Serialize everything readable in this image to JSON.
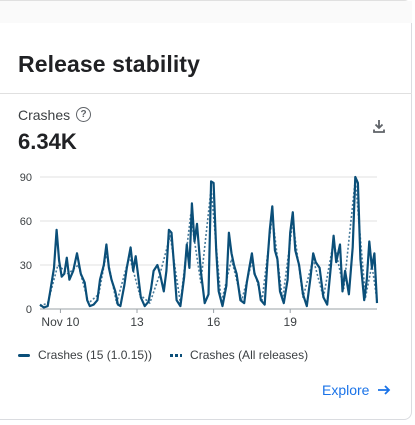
{
  "card": {
    "title": "Release stability",
    "metric_label": "Crashes",
    "metric_value": "6.34K",
    "help_icon": "help-circle-icon",
    "download_icon": "download-icon",
    "explore_label": "Explore",
    "explore_icon": "arrow-right-icon"
  },
  "legend": [
    {
      "label": "Crashes (15 (1.0.15))",
      "style": "solid"
    },
    {
      "label": "Crashes (All releases)",
      "style": "dotted"
    }
  ],
  "colors": {
    "series": "#0b4f79",
    "accent": "#1a73e8",
    "grid": "#e0e0e0"
  },
  "chart_data": {
    "type": "line",
    "y_ticks": [
      "90",
      "60",
      "30",
      "0"
    ],
    "ylim": [
      0,
      90
    ],
    "x_ticks": [
      {
        "label": "Nov 10",
        "day": 10
      },
      {
        "label": "13",
        "day": 13
      },
      {
        "label": "16",
        "day": 16
      },
      {
        "label": "19",
        "day": 19
      }
    ],
    "xlim": [
      9.2,
      22.4
    ],
    "series": [
      {
        "name": "Crashes (15 (1.0.15))",
        "style": "solid",
        "points": [
          [
            9.2,
            3
          ],
          [
            9.35,
            1
          ],
          [
            9.5,
            2
          ],
          [
            9.6,
            12
          ],
          [
            9.75,
            28
          ],
          [
            9.85,
            54
          ],
          [
            9.95,
            33
          ],
          [
            10.05,
            22
          ],
          [
            10.15,
            24
          ],
          [
            10.25,
            35
          ],
          [
            10.35,
            20
          ],
          [
            10.5,
            26
          ],
          [
            10.65,
            38
          ],
          [
            10.8,
            24
          ],
          [
            10.95,
            18
          ],
          [
            11.05,
            6
          ],
          [
            11.15,
            2
          ],
          [
            11.3,
            3
          ],
          [
            11.45,
            6
          ],
          [
            11.55,
            20
          ],
          [
            11.7,
            30
          ],
          [
            11.8,
            44
          ],
          [
            11.9,
            28
          ],
          [
            12.0,
            20
          ],
          [
            12.15,
            12
          ],
          [
            12.25,
            3
          ],
          [
            12.35,
            2
          ],
          [
            12.5,
            16
          ],
          [
            12.6,
            28
          ],
          [
            12.75,
            42
          ],
          [
            12.85,
            26
          ],
          [
            12.95,
            36
          ],
          [
            13.05,
            22
          ],
          [
            13.15,
            8
          ],
          [
            13.3,
            2
          ],
          [
            13.45,
            5
          ],
          [
            13.55,
            14
          ],
          [
            13.65,
            26
          ],
          [
            13.8,
            30
          ],
          [
            13.9,
            24
          ],
          [
            14.05,
            12
          ],
          [
            14.15,
            26
          ],
          [
            14.25,
            54
          ],
          [
            14.35,
            52
          ],
          [
            14.45,
            30
          ],
          [
            14.55,
            6
          ],
          [
            14.7,
            2
          ],
          [
            14.85,
            22
          ],
          [
            14.95,
            44
          ],
          [
            15.05,
            28
          ],
          [
            15.15,
            72
          ],
          [
            15.25,
            46
          ],
          [
            15.35,
            58
          ],
          [
            15.5,
            26
          ],
          [
            15.65,
            4
          ],
          [
            15.8,
            10
          ],
          [
            15.9,
            87
          ],
          [
            16.0,
            86
          ],
          [
            16.1,
            40
          ],
          [
            16.2,
            12
          ],
          [
            16.35,
            2
          ],
          [
            16.5,
            16
          ],
          [
            16.6,
            52
          ],
          [
            16.7,
            38
          ],
          [
            16.8,
            30
          ],
          [
            16.9,
            24
          ],
          [
            17.05,
            6
          ],
          [
            17.2,
            4
          ],
          [
            17.3,
            18
          ],
          [
            17.4,
            28
          ],
          [
            17.5,
            38
          ],
          [
            17.6,
            24
          ],
          [
            17.75,
            18
          ],
          [
            17.85,
            6
          ],
          [
            18.0,
            3
          ],
          [
            18.1,
            30
          ],
          [
            18.2,
            54
          ],
          [
            18.3,
            70
          ],
          [
            18.4,
            40
          ],
          [
            18.5,
            34
          ],
          [
            18.6,
            12
          ],
          [
            18.75,
            4
          ],
          [
            18.9,
            20
          ],
          [
            19.0,
            52
          ],
          [
            19.1,
            66
          ],
          [
            19.2,
            40
          ],
          [
            19.35,
            30
          ],
          [
            19.5,
            10
          ],
          [
            19.65,
            2
          ],
          [
            19.8,
            22
          ],
          [
            19.9,
            38
          ],
          [
            20.0,
            32
          ],
          [
            20.15,
            28
          ],
          [
            20.3,
            8
          ],
          [
            20.45,
            3
          ],
          [
            20.6,
            30
          ],
          [
            20.7,
            50
          ],
          [
            20.8,
            32
          ],
          [
            20.95,
            44
          ],
          [
            21.05,
            12
          ],
          [
            21.15,
            26
          ],
          [
            21.3,
            10
          ],
          [
            21.45,
            42
          ],
          [
            21.55,
            90
          ],
          [
            21.65,
            86
          ],
          [
            21.75,
            34
          ],
          [
            21.9,
            6
          ],
          [
            22.0,
            20
          ],
          [
            22.1,
            46
          ],
          [
            22.2,
            28
          ],
          [
            22.3,
            38
          ],
          [
            22.4,
            4
          ]
        ]
      },
      {
        "name": "Crashes (All releases)",
        "style": "dotted",
        "points": [
          [
            9.2,
            2
          ],
          [
            9.5,
            4
          ],
          [
            9.9,
            30
          ],
          [
            10.3,
            24
          ],
          [
            10.7,
            30
          ],
          [
            11.1,
            4
          ],
          [
            11.5,
            10
          ],
          [
            11.8,
            38
          ],
          [
            12.2,
            4
          ],
          [
            12.7,
            36
          ],
          [
            13.1,
            10
          ],
          [
            13.5,
            4
          ],
          [
            13.9,
            24
          ],
          [
            14.3,
            50
          ],
          [
            14.7,
            4
          ],
          [
            15.1,
            64
          ],
          [
            15.5,
            18
          ],
          [
            15.9,
            82
          ],
          [
            16.3,
            4
          ],
          [
            16.7,
            34
          ],
          [
            17.1,
            6
          ],
          [
            17.5,
            32
          ],
          [
            17.9,
            6
          ],
          [
            18.3,
            64
          ],
          [
            18.7,
            6
          ],
          [
            19.1,
            60
          ],
          [
            19.5,
            8
          ],
          [
            19.9,
            34
          ],
          [
            20.3,
            8
          ],
          [
            20.7,
            46
          ],
          [
            21.1,
            14
          ],
          [
            21.55,
            88
          ],
          [
            21.95,
            8
          ],
          [
            22.2,
            30
          ],
          [
            22.4,
            6
          ]
        ]
      }
    ]
  }
}
